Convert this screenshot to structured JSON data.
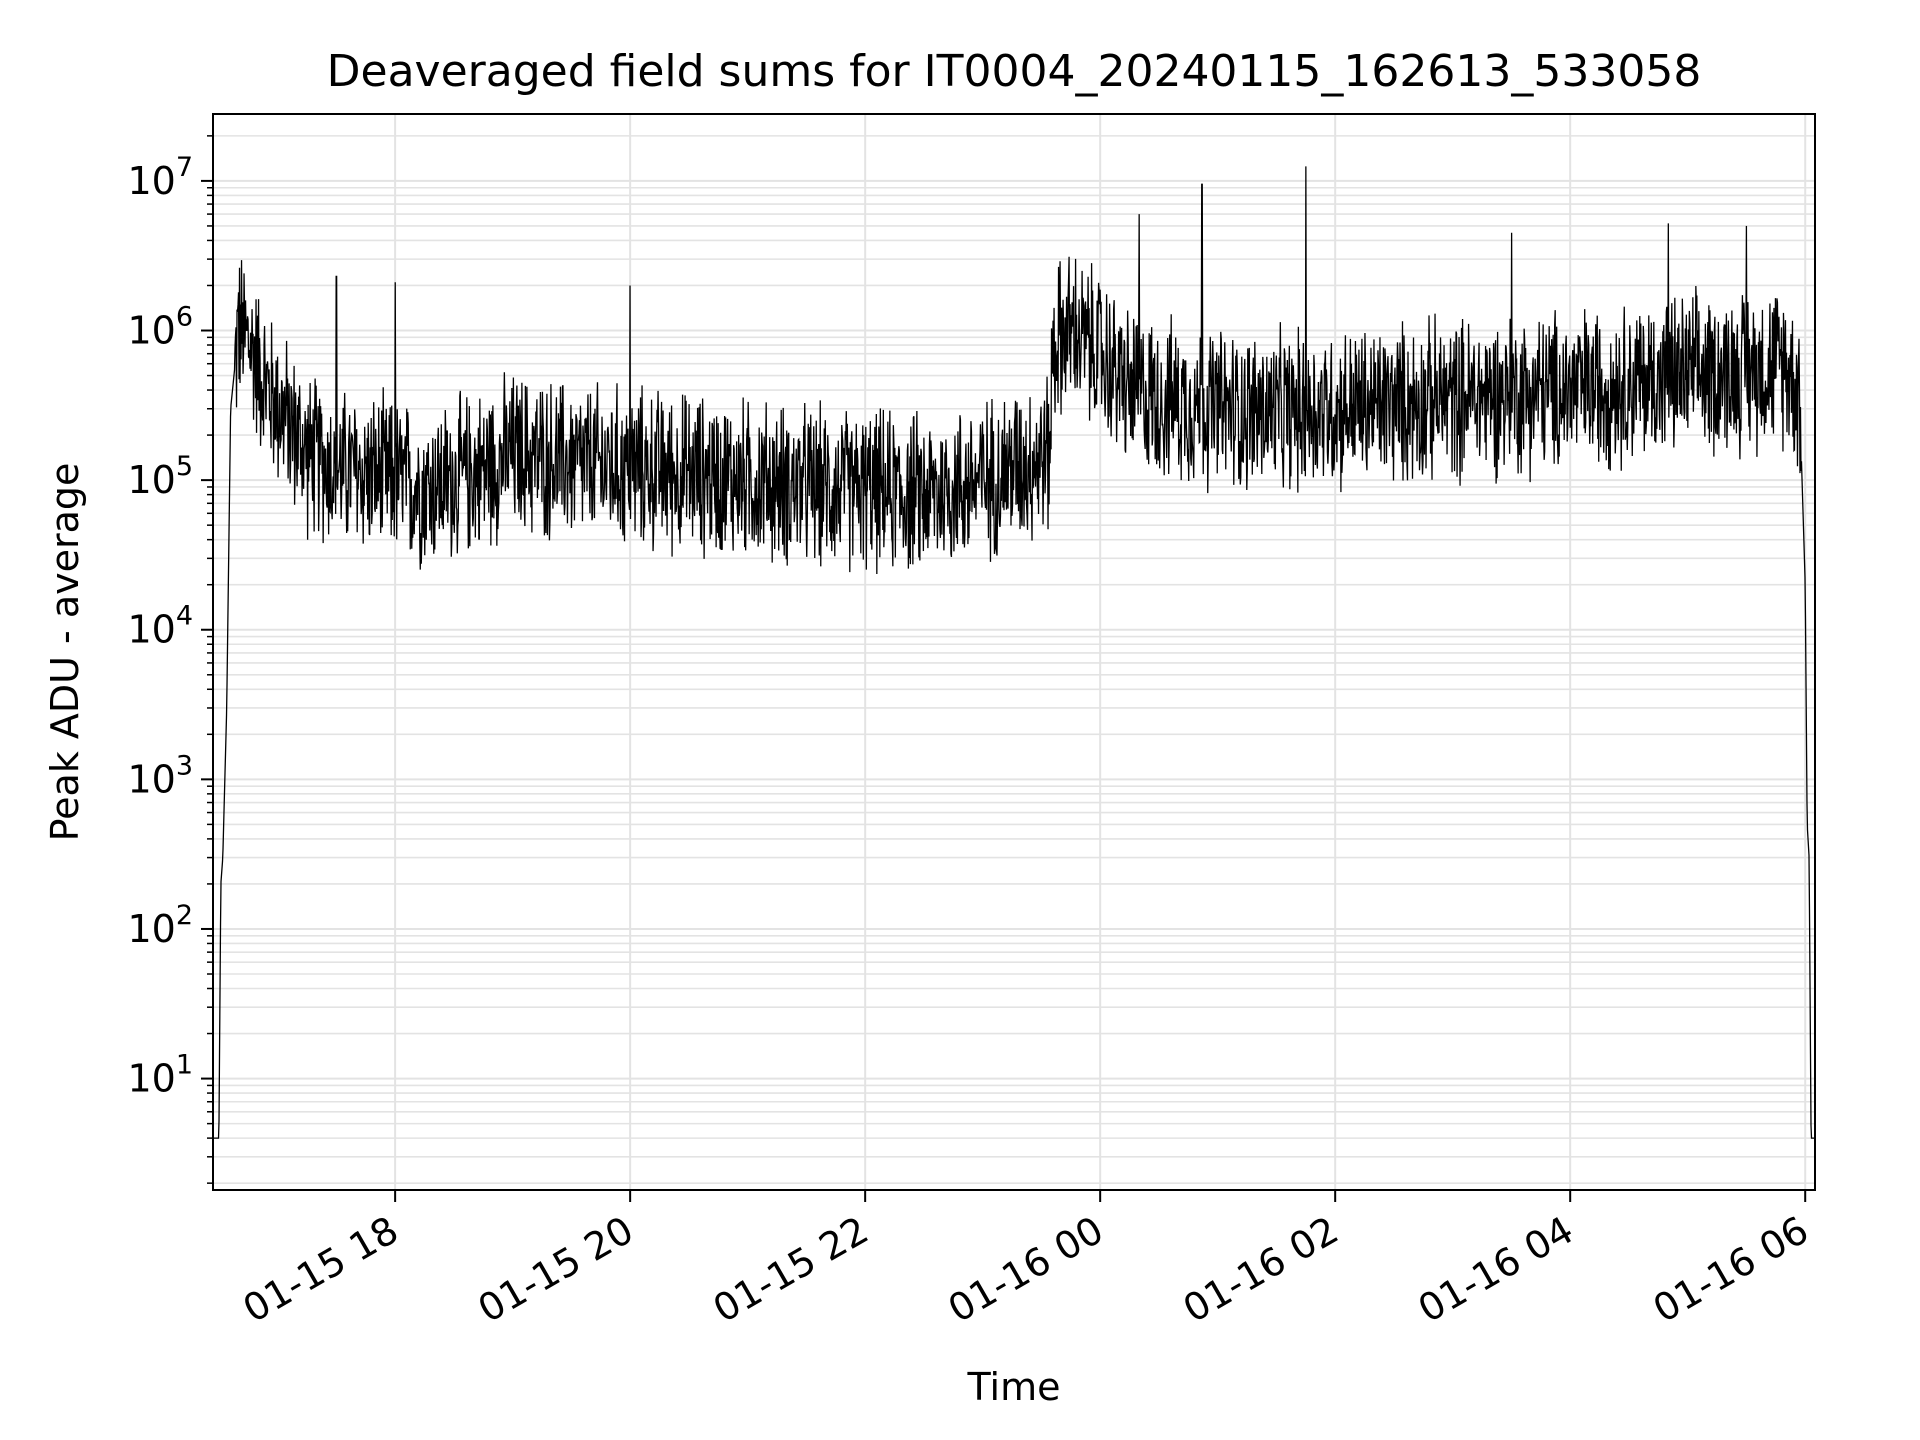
{
  "chart_data": {
    "type": "line",
    "title": "Deaveraged field sums for IT0004_20240115_162613_533058",
    "xlabel": "Time",
    "ylabel": "Peak ADU - average",
    "yscale": "log",
    "xlim": [
      "2024-01-15 16:27",
      "2024-01-16 06:05"
    ],
    "ylim": [
      1.8,
      28000000
    ],
    "grid": true,
    "line_color": "#000000",
    "grid_color": "#e3e3e3",
    "xticks": [
      {
        "t": "2024-01-15 18:00",
        "label": "01-15 18"
      },
      {
        "t": "2024-01-15 20:00",
        "label": "01-15 20"
      },
      {
        "t": "2024-01-15 22:00",
        "label": "01-15 22"
      },
      {
        "t": "2024-01-16 00:00",
        "label": "01-16 00"
      },
      {
        "t": "2024-01-16 02:00",
        "label": "01-16 02"
      },
      {
        "t": "2024-01-16 04:00",
        "label": "01-16 04"
      },
      {
        "t": "2024-01-16 06:00",
        "label": "01-16 06"
      }
    ],
    "yticks": [
      {
        "v": 10,
        "base": "10",
        "exp": "1"
      },
      {
        "v": 100,
        "base": "10",
        "exp": "2"
      },
      {
        "v": 1000,
        "base": "10",
        "exp": "3"
      },
      {
        "v": 10000,
        "base": "10",
        "exp": "4"
      },
      {
        "v": 100000,
        "base": "10",
        "exp": "5"
      },
      {
        "v": 1000000,
        "base": "10",
        "exp": "6"
      },
      {
        "v": 10000000,
        "base": "10",
        "exp": "7"
      }
    ],
    "series": [
      {
        "x": [
          "2024-01-15 16:27",
          "2024-01-15 16:30",
          "2024-01-15 16:31",
          "2024-01-15 16:32",
          "2024-01-15 16:34",
          "2024-01-15 16:36",
          "2024-01-15 16:40",
          "2024-01-15 16:44",
          "2024-01-15 16:48",
          "2024-01-15 16:55",
          "2024-01-15 17:05",
          "2024-01-15 17:15",
          "2024-01-15 17:30",
          "2024-01-15 17:45",
          "2024-01-15 18:00",
          "2024-01-15 18:15",
          "2024-01-15 18:30",
          "2024-01-15 18:45",
          "2024-01-15 19:00",
          "2024-01-15 19:30",
          "2024-01-15 20:00",
          "2024-01-15 20:30",
          "2024-01-15 21:00",
          "2024-01-15 21:30",
          "2024-01-15 22:00",
          "2024-01-15 22:30",
          "2024-01-15 23:00",
          "2024-01-15 23:20",
          "2024-01-15 23:34",
          "2024-01-15 23:36",
          "2024-01-15 23:45",
          "2024-01-16 00:00",
          "2024-01-16 00:15",
          "2024-01-16 00:30",
          "2024-01-16 01:00",
          "2024-01-16 01:30",
          "2024-01-16 02:00",
          "2024-01-16 02:30",
          "2024-01-16 03:00",
          "2024-01-16 03:30",
          "2024-01-16 04:00",
          "2024-01-16 04:30",
          "2024-01-16 05:00",
          "2024-01-16 05:30",
          "2024-01-16 05:50",
          "2024-01-16 05:57",
          "2024-01-16 06:00",
          "2024-01-16 06:01",
          "2024-01-16 06:02",
          "2024-01-16 06:03"
        ],
        "y": [
          4,
          4,
          200,
          300,
          3000,
          300000,
          1000000,
          900000,
          700000,
          400000,
          250000,
          150000,
          120000,
          110000,
          100000,
          90000,
          100000,
          120000,
          150000,
          130000,
          120000,
          110000,
          100000,
          90000,
          85000,
          80000,
          100000,
          130000,
          150000,
          800000,
          1000000,
          700000,
          400000,
          350000,
          300000,
          280000,
          300000,
          320000,
          350000,
          380000,
          400000,
          450000,
          500000,
          550000,
          600000,
          400000,
          20000,
          500,
          300,
          4
        ],
        "noise_amplitude_decades": 0.45
      }
    ],
    "spikes": [
      {
        "t": "2024-01-15 16:40",
        "y": 1800000
      },
      {
        "t": "2024-01-15 17:30",
        "y": 2300000
      },
      {
        "t": "2024-01-15 18:00",
        "y": 2100000
      },
      {
        "t": "2024-01-15 20:00",
        "y": 2000000
      },
      {
        "t": "2024-01-16 00:20",
        "y": 6000000
      },
      {
        "t": "2024-01-16 00:52",
        "y": 9500000
      },
      {
        "t": "2024-01-16 01:45",
        "y": 12500000
      },
      {
        "t": "2024-01-16 03:30",
        "y": 4500000
      },
      {
        "t": "2024-01-16 04:50",
        "y": 5200000
      },
      {
        "t": "2024-01-16 05:30",
        "y": 5000000
      }
    ]
  }
}
